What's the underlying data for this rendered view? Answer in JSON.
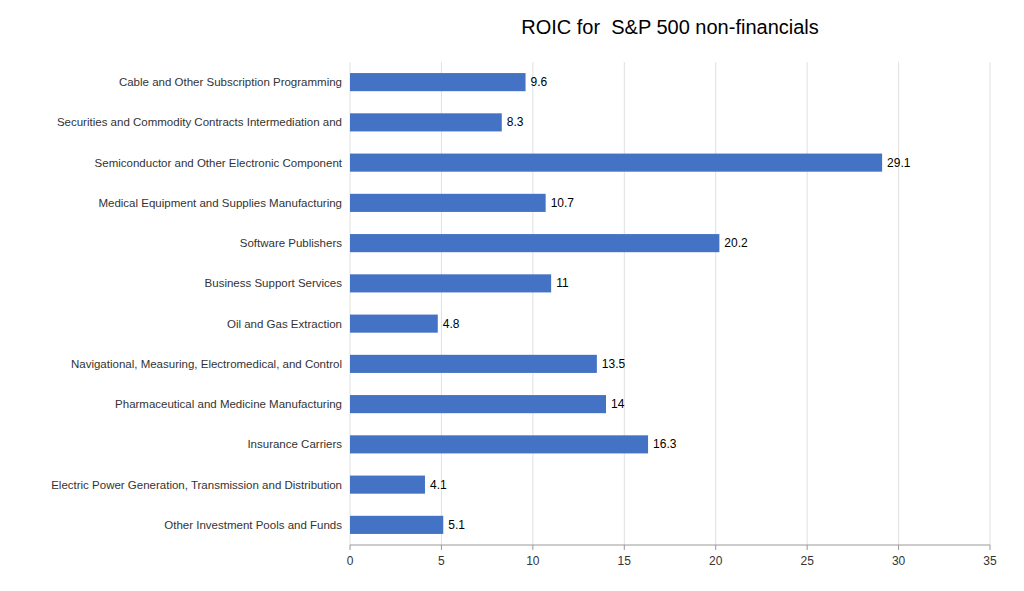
{
  "chart_data": {
    "type": "bar",
    "orientation": "horizontal",
    "title": "ROIC for  S&P 500 non-financials",
    "categories": [
      "Other Investment Pools and Funds",
      "Electric Power Generation, Transmission and Distribution",
      "Insurance Carriers",
      "Pharmaceutical and Medicine Manufacturing",
      "Navigational, Measuring, Electromedical, and Control",
      "Oil and Gas Extraction",
      "Business Support Services",
      "Software Publishers",
      "Medical Equipment and Supplies Manufacturing",
      "Semiconductor and Other Electronic Component",
      "Securities and Commodity Contracts Intermediation and",
      "Cable and Other Subscription Programming"
    ],
    "values": [
      5.1,
      4.1,
      16.3,
      14.0,
      13.5,
      4.8,
      11.0,
      20.2,
      10.7,
      29.1,
      8.3,
      9.6
    ],
    "color": "#4472C4",
    "xlim": [
      0,
      35
    ],
    "xticks": [
      0,
      5,
      10,
      15,
      20,
      25,
      30,
      35
    ],
    "grid": true,
    "data_labels": true
  }
}
